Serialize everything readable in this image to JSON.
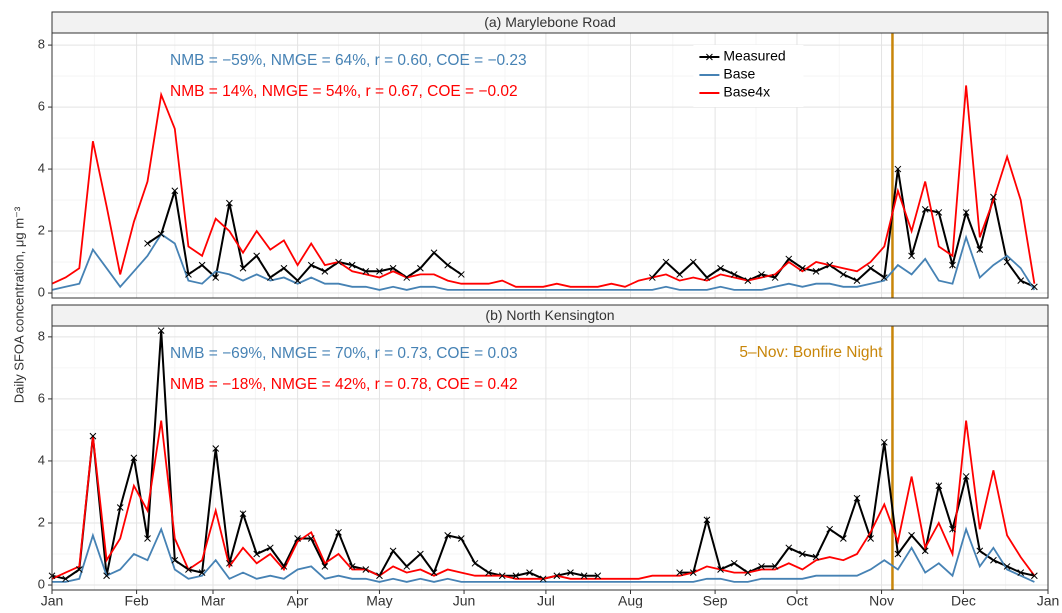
{
  "ylabel": "Daily SFOA concentration,  μg m⁻³",
  "chart_data": [
    {
      "type": "line",
      "title": "(a) Marylebone Road",
      "x": [
        1,
        6,
        11,
        16,
        21,
        26,
        31,
        36,
        41,
        46,
        51,
        56,
        61,
        66,
        71,
        76,
        81,
        86,
        91,
        96,
        101,
        106,
        111,
        116,
        121,
        126,
        131,
        136,
        141,
        146,
        151,
        156,
        161,
        166,
        171,
        176,
        181,
        186,
        191,
        196,
        201,
        206,
        211,
        216,
        221,
        226,
        231,
        236,
        241,
        246,
        251,
        256,
        261,
        266,
        271,
        276,
        281,
        286,
        291,
        296,
        301,
        306,
        311,
        316,
        321,
        326,
        331,
        336,
        341,
        346,
        351,
        356,
        361
      ],
      "series": [
        {
          "name": "Measured",
          "color": "#000000",
          "marker": "x",
          "values": [
            null,
            null,
            null,
            null,
            null,
            null,
            null,
            1.6,
            1.9,
            3.3,
            0.6,
            0.9,
            0.5,
            2.9,
            0.8,
            1.2,
            0.5,
            0.8,
            0.4,
            0.9,
            0.7,
            1.0,
            0.9,
            0.7,
            0.7,
            0.8,
            0.5,
            0.8,
            1.3,
            0.9,
            0.6,
            null,
            null,
            null,
            null,
            null,
            null,
            null,
            null,
            null,
            null,
            null,
            null,
            null,
            0.5,
            1.0,
            0.6,
            1.0,
            0.5,
            0.8,
            0.6,
            0.4,
            0.6,
            0.5,
            1.1,
            0.8,
            0.7,
            0.9,
            0.6,
            0.4,
            0.8,
            0.5,
            4.0,
            1.2,
            2.7,
            2.6,
            0.9,
            2.6,
            1.4,
            3.1,
            1.0,
            0.4,
            0.2
          ]
        },
        {
          "name": "Base",
          "color": "#4682b4",
          "values": [
            0.1,
            0.2,
            0.3,
            1.4,
            0.8,
            0.2,
            0.7,
            1.2,
            1.9,
            1.6,
            0.4,
            0.3,
            0.7,
            0.6,
            0.4,
            0.6,
            0.4,
            0.5,
            0.3,
            0.5,
            0.3,
            0.3,
            0.2,
            0.2,
            0.1,
            0.2,
            0.1,
            0.2,
            0.2,
            0.1,
            0.1,
            0.1,
            0.1,
            0.1,
            0.1,
            0.1,
            0.1,
            0.1,
            0.1,
            0.1,
            0.1,
            0.1,
            0.1,
            0.1,
            0.1,
            0.2,
            0.1,
            0.1,
            0.1,
            0.2,
            0.1,
            0.1,
            0.1,
            0.2,
            0.3,
            0.2,
            0.3,
            0.3,
            0.2,
            0.2,
            0.3,
            0.4,
            0.9,
            0.6,
            1.1,
            0.4,
            0.3,
            1.8,
            0.5,
            0.9,
            1.2,
            0.8,
            0.1
          ]
        },
        {
          "name": "Base4x",
          "color": "#ff0000",
          "values": [
            0.3,
            0.5,
            0.8,
            4.9,
            2.8,
            0.6,
            2.3,
            3.6,
            6.4,
            5.3,
            1.5,
            1.2,
            2.4,
            2.0,
            1.3,
            2.0,
            1.4,
            1.7,
            0.9,
            1.6,
            0.9,
            1.0,
            0.7,
            0.6,
            0.5,
            0.7,
            0.5,
            0.6,
            0.6,
            0.4,
            0.3,
            0.3,
            0.3,
            0.4,
            0.2,
            0.2,
            0.2,
            0.3,
            0.2,
            0.2,
            0.2,
            0.3,
            0.2,
            0.4,
            0.5,
            0.6,
            0.4,
            0.5,
            0.4,
            0.6,
            0.5,
            0.4,
            0.5,
            0.6,
            1.0,
            0.7,
            1.0,
            0.9,
            0.8,
            0.7,
            1.0,
            1.5,
            3.3,
            2.0,
            3.6,
            1.5,
            1.2,
            6.7,
            1.8,
            3.0,
            4.4,
            3.0,
            0.3
          ]
        }
      ],
      "annotations": [
        {
          "text": "NMB = −59%, NMGE = 64%, r = 0.60, COE = −0.23",
          "color": "#4682b4"
        },
        {
          "text": "NMB = 14%, NMGE = 54%, r = 0.67, COE = −0.02",
          "color": "#ff0000"
        }
      ],
      "vline": {
        "x": 309,
        "color": "#c8860a"
      },
      "legend": "top-right",
      "xlim": [
        1,
        366
      ],
      "xticks": [
        {
          "value": 1,
          "label": "Jan"
        },
        {
          "value": 32,
          "label": "Feb"
        },
        {
          "value": 60,
          "label": "Mar"
        },
        {
          "value": 91,
          "label": "Apr"
        },
        {
          "value": 121,
          "label": "May"
        },
        {
          "value": 152,
          "label": "Jun"
        },
        {
          "value": 182,
          "label": "Jul"
        },
        {
          "value": 213,
          "label": "Aug"
        },
        {
          "value": 244,
          "label": "Sep"
        },
        {
          "value": 274,
          "label": "Oct"
        },
        {
          "value": 305,
          "label": "Nov"
        },
        {
          "value": 335,
          "label": "Dec"
        },
        {
          "value": 366,
          "label": "Jan"
        }
      ],
      "ylim": [
        -0.16,
        8.39
      ],
      "yticks": [
        0,
        2,
        4,
        6,
        8
      ],
      "grid": true
    },
    {
      "type": "line",
      "title": "(b) North Kensington",
      "x": [
        1,
        6,
        11,
        16,
        21,
        26,
        31,
        36,
        41,
        46,
        51,
        56,
        61,
        66,
        71,
        76,
        81,
        86,
        91,
        96,
        101,
        106,
        111,
        116,
        121,
        126,
        131,
        136,
        141,
        146,
        151,
        156,
        161,
        166,
        171,
        176,
        181,
        186,
        191,
        196,
        201,
        206,
        211,
        216,
        221,
        226,
        231,
        236,
        241,
        246,
        251,
        256,
        261,
        266,
        271,
        276,
        281,
        286,
        291,
        296,
        301,
        306,
        311,
        316,
        321,
        326,
        331,
        336,
        341,
        346,
        351,
        356,
        361
      ],
      "series": [
        {
          "name": "Measured",
          "color": "#000000",
          "marker": "x",
          "values": [
            0.3,
            0.2,
            0.5,
            4.8,
            0.3,
            2.5,
            4.1,
            1.5,
            8.2,
            0.8,
            0.5,
            0.4,
            4.4,
            0.7,
            2.3,
            1.0,
            1.2,
            0.6,
            1.5,
            1.5,
            0.6,
            1.7,
            0.6,
            0.5,
            0.3,
            1.1,
            0.6,
            1.0,
            0.4,
            1.6,
            1.5,
            0.7,
            0.4,
            0.3,
            0.3,
            0.4,
            0.2,
            0.3,
            0.4,
            0.3,
            0.3,
            null,
            null,
            null,
            null,
            null,
            0.4,
            0.4,
            2.1,
            0.5,
            0.7,
            0.4,
            0.6,
            0.6,
            1.2,
            1.0,
            0.9,
            1.8,
            1.5,
            2.8,
            1.5,
            4.6,
            1.0,
            1.6,
            1.1,
            3.2,
            1.8,
            3.5,
            1.1,
            0.8,
            0.6,
            0.4,
            0.3
          ]
        },
        {
          "name": "Base",
          "color": "#4682b4",
          "values": [
            0.1,
            0.1,
            0.2,
            1.6,
            0.3,
            0.5,
            1.0,
            0.8,
            1.8,
            0.5,
            0.2,
            0.3,
            0.8,
            0.2,
            0.4,
            0.2,
            0.3,
            0.2,
            0.5,
            0.6,
            0.2,
            0.3,
            0.2,
            0.2,
            0.1,
            0.2,
            0.1,
            0.2,
            0.1,
            0.2,
            0.1,
            0.1,
            0.1,
            0.1,
            0.1,
            0.1,
            0.1,
            0.1,
            0.1,
            0.1,
            0.1,
            0.1,
            0.1,
            0.1,
            0.1,
            0.1,
            0.1,
            0.1,
            0.2,
            0.2,
            0.1,
            0.1,
            0.2,
            0.2,
            0.2,
            0.2,
            0.3,
            0.3,
            0.3,
            0.3,
            0.5,
            0.8,
            0.5,
            1.2,
            0.4,
            0.7,
            0.3,
            1.8,
            0.6,
            1.2,
            0.5,
            0.3,
            0.1
          ]
        },
        {
          "name": "Base4x",
          "color": "#ff0000",
          "values": [
            0.2,
            0.4,
            0.6,
            4.8,
            0.8,
            1.5,
            3.2,
            2.4,
            5.3,
            1.5,
            0.5,
            0.8,
            2.4,
            0.6,
            1.2,
            0.7,
            1.0,
            0.5,
            1.4,
            1.7,
            0.7,
            1.0,
            0.5,
            0.5,
            0.3,
            0.6,
            0.4,
            0.5,
            0.3,
            0.5,
            0.4,
            0.3,
            0.3,
            0.3,
            0.2,
            0.2,
            0.2,
            0.3,
            0.2,
            0.2,
            0.2,
            0.2,
            0.2,
            0.2,
            0.3,
            0.3,
            0.3,
            0.4,
            0.6,
            0.5,
            0.4,
            0.4,
            0.5,
            0.5,
            0.7,
            0.5,
            0.8,
            0.9,
            0.8,
            1.0,
            1.7,
            2.6,
            1.4,
            3.5,
            1.2,
            2.0,
            1.0,
            5.3,
            1.8,
            3.7,
            1.6,
            0.9,
            0.3
          ]
        }
      ],
      "annotations": [
        {
          "text": "NMB = −69%, NMGE = 70%, r = 0.73, COE = 0.03",
          "color": "#4682b4"
        },
        {
          "text": "NMB = −18%, NMGE = 42%, r = 0.78, COE = 0.42",
          "color": "#ff0000"
        }
      ],
      "vline": {
        "x": 309,
        "color": "#c8860a",
        "label": "5–Nov: Bonfire Night"
      },
      "xlim": [
        1,
        366
      ],
      "xticks": [
        {
          "value": 1,
          "label": "Jan"
        },
        {
          "value": 32,
          "label": "Feb"
        },
        {
          "value": 60,
          "label": "Mar"
        },
        {
          "value": 91,
          "label": "Apr"
        },
        {
          "value": 121,
          "label": "May"
        },
        {
          "value": 152,
          "label": "Jun"
        },
        {
          "value": 182,
          "label": "Jul"
        },
        {
          "value": 213,
          "label": "Aug"
        },
        {
          "value": 244,
          "label": "Sep"
        },
        {
          "value": 274,
          "label": "Oct"
        },
        {
          "value": 305,
          "label": "Nov"
        },
        {
          "value": 335,
          "label": "Dec"
        },
        {
          "value": 366,
          "label": "Jan"
        }
      ],
      "ylim": [
        -0.16,
        8.35
      ],
      "yticks": [
        0,
        2,
        4,
        6,
        8
      ],
      "grid": true
    }
  ]
}
